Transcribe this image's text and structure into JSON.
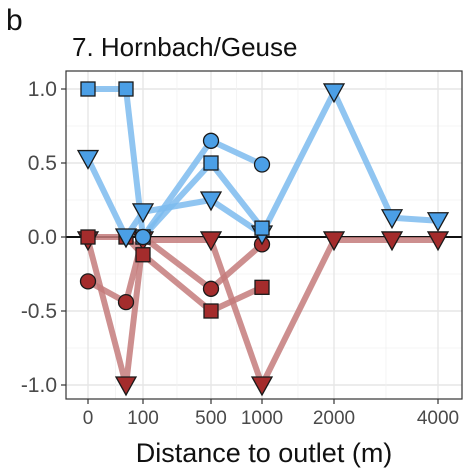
{
  "panel_label": "b",
  "chart_data": {
    "type": "line",
    "title": "7. Hornbach/Geuse",
    "xlabel": "Distance to outlet (m)",
    "ylabel": "",
    "x_ticks": [
      {
        "value": 0,
        "label": "0"
      },
      {
        "value": 100,
        "label": "100"
      },
      {
        "value": 500,
        "label": "500"
      },
      {
        "value": 1000,
        "label": "1000"
      },
      {
        "value": 2000,
        "label": "2000"
      },
      {
        "value": 4000,
        "label": "4000"
      }
    ],
    "x_scale": "nonlinear (categorical-like spacing)",
    "y_ticks": [
      {
        "value": 1.0,
        "label": "1.0"
      },
      {
        "value": 0.5,
        "label": "0.5"
      },
      {
        "value": 0.0,
        "label": "0.0"
      },
      {
        "value": -0.5,
        "label": "-0.5"
      },
      {
        "value": -1.0,
        "label": "-1.0"
      }
    ],
    "ylim": [
      -1.1,
      1.1
    ],
    "grid": true,
    "zero_line": true,
    "colors": {
      "positive_line": "#7dbbee",
      "positive_marker": "#4b9fe6",
      "negative_line": "#c47b7b",
      "negative_marker": "#a42c2c",
      "marker_edge": "#1a1a1a"
    },
    "series": [
      {
        "sign": "positive",
        "marker": "square",
        "points": [
          {
            "x": 0,
            "y": 1.0
          },
          {
            "x": 70,
            "y": 1.0
          },
          {
            "x": 100,
            "y": 0.0
          }
        ]
      },
      {
        "sign": "positive",
        "marker": "triangle-down",
        "points": [
          {
            "x": 0,
            "y": 0.53
          },
          {
            "x": 70,
            "y": 0.0
          },
          {
            "x": 100,
            "y": 0.17
          },
          {
            "x": 500,
            "y": 0.25
          },
          {
            "x": 1000,
            "y": 0.02
          },
          {
            "x": 2000,
            "y": 0.98
          },
          {
            "x": 3000,
            "y": 0.13
          },
          {
            "x": 4000,
            "y": 0.11
          }
        ]
      },
      {
        "sign": "positive",
        "marker": "square",
        "points": [
          {
            "x": 100,
            "y": 0.0
          },
          {
            "x": 500,
            "y": 0.5
          },
          {
            "x": 1000,
            "y": 0.06
          }
        ]
      },
      {
        "sign": "positive",
        "marker": "circle",
        "points": [
          {
            "x": 100,
            "y": 0.0
          },
          {
            "x": 500,
            "y": 0.65
          },
          {
            "x": 1000,
            "y": 0.49
          }
        ]
      },
      {
        "sign": "negative",
        "marker": "triangle-down",
        "points": [
          {
            "x": 0,
            "y": -0.02
          },
          {
            "x": 70,
            "y": -1.0
          },
          {
            "x": 100,
            "y": -0.02
          },
          {
            "x": 500,
            "y": -0.02
          },
          {
            "x": 1000,
            "y": -1.0
          },
          {
            "x": 2000,
            "y": -0.02
          },
          {
            "x": 3000,
            "y": -0.02
          },
          {
            "x": 4000,
            "y": -0.02
          }
        ]
      },
      {
        "sign": "negative",
        "marker": "square",
        "points": [
          {
            "x": 0,
            "y": 0.0
          },
          {
            "x": 70,
            "y": 0.0
          },
          {
            "x": 100,
            "y": -0.12
          },
          {
            "x": 500,
            "y": -0.5
          },
          {
            "x": 1000,
            "y": -0.34
          }
        ]
      },
      {
        "sign": "negative",
        "marker": "circle",
        "points": [
          {
            "x": 0,
            "y": -0.3
          },
          {
            "x": 70,
            "y": -0.44
          },
          {
            "x": 100,
            "y": 0.0
          },
          {
            "x": 500,
            "y": -0.35
          },
          {
            "x": 1000,
            "y": -0.05
          }
        ]
      }
    ]
  }
}
